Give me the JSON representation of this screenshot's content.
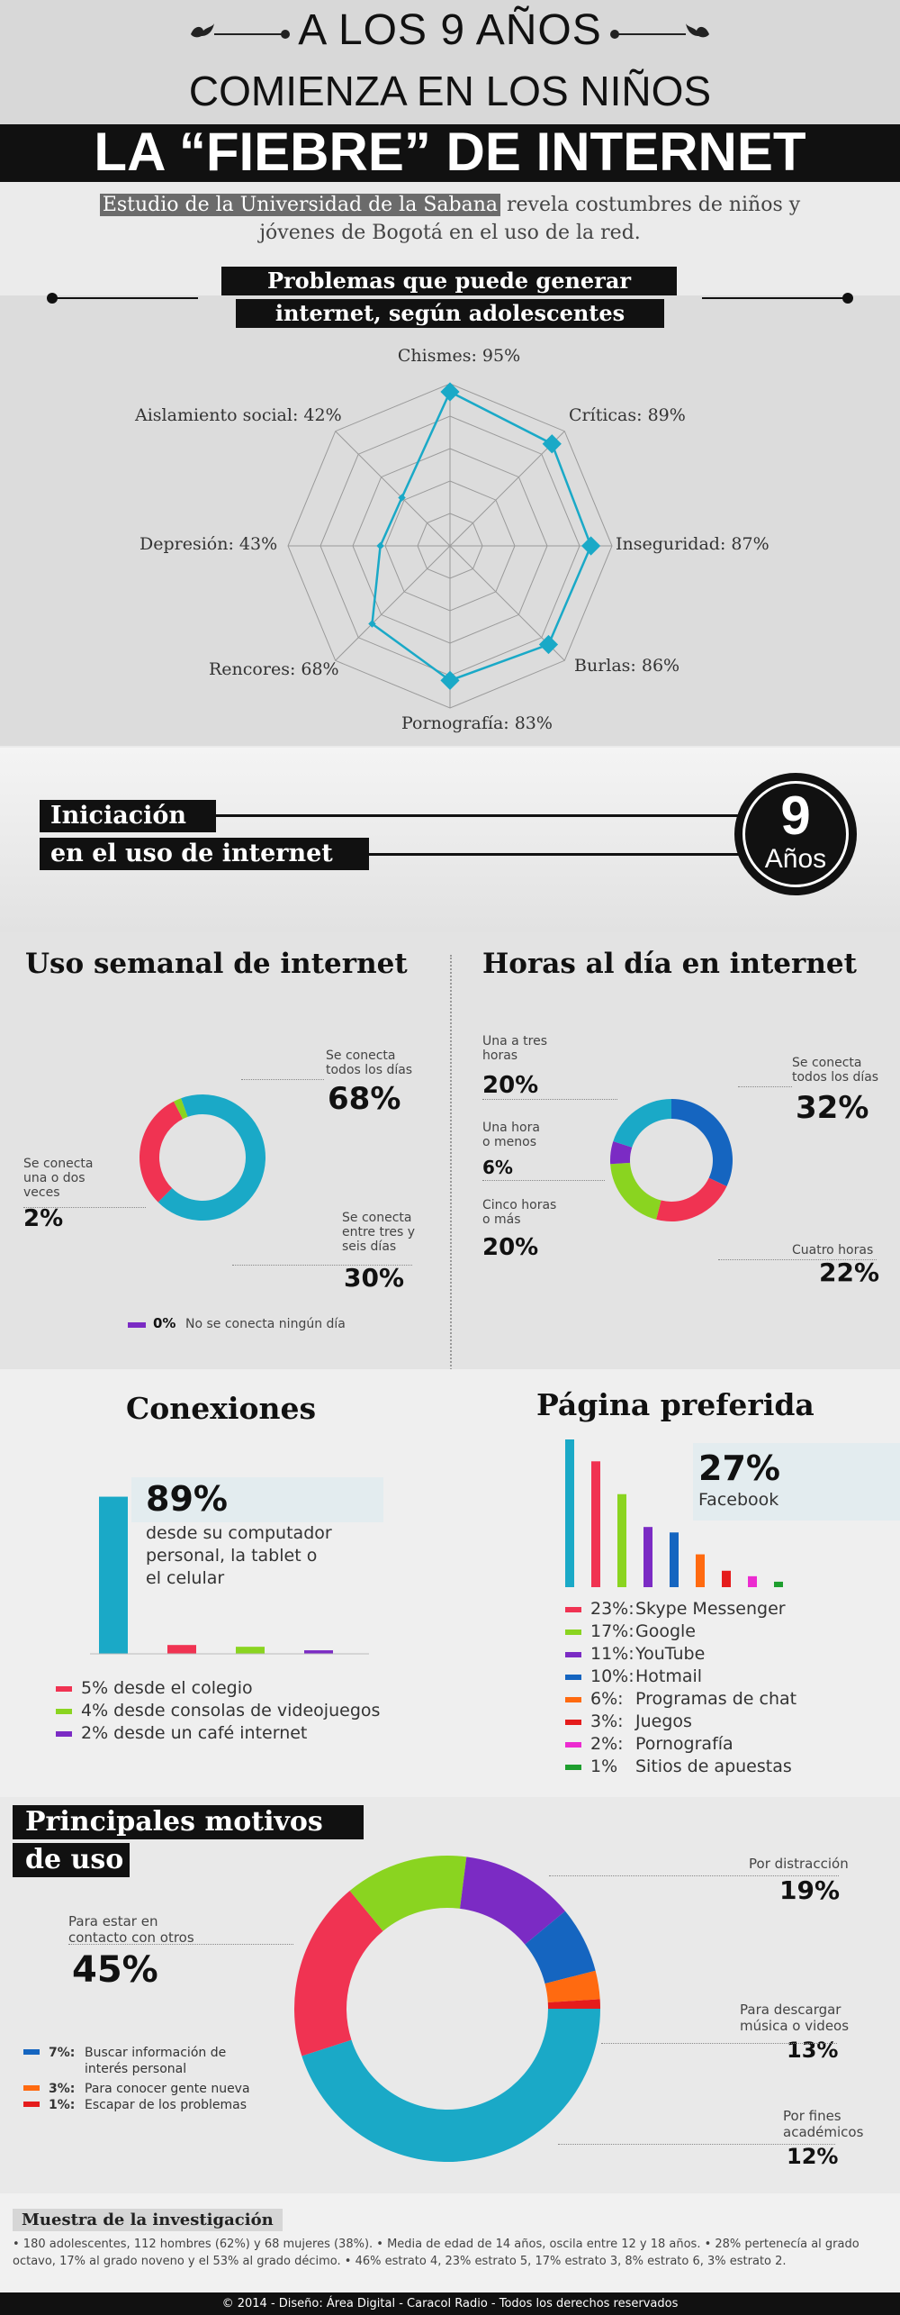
{
  "header": {
    "line1": "A LOS 9 AÑOS",
    "line2": "COMIENZA EN LOS NIÑOS",
    "line3": "LA “FIEBRE” DE INTERNET",
    "subtitle_highlight": "Estudio de la Universidad de la Sabana",
    "subtitle_rest": " revela costumbres de niños y",
    "subtitle_line2": "jóvenes de Bogotá en el uso de la red."
  },
  "problems": {
    "title_line1": "Problemas que  puede generar",
    "title_line2": "internet, según adolescentes",
    "labels": [
      "Chismes: 95%",
      "Críticas: 89%",
      "Inseguridad: 87%",
      "Burlas: 86%",
      "Pornografía: 83%",
      "Rencores: 68%",
      "Depresión: 43%",
      "Aislamiento social: 42%"
    ],
    "chart_data": {
      "type": "radar",
      "categories": [
        "Chismes",
        "Críticas",
        "Inseguridad",
        "Burlas",
        "Pornografía",
        "Rencores",
        "Depresión",
        "Aislamiento social"
      ],
      "values": [
        95,
        89,
        87,
        86,
        83,
        68,
        43,
        42
      ],
      "unit": "%",
      "color": "#1aa9c7"
    }
  },
  "initiation": {
    "line1": "Iniciación",
    "line2": "en el uso de internet",
    "number": "9",
    "unit": "Años"
  },
  "weekly": {
    "title": "Uso semanal de internet",
    "labels": {
      "daily_desc": "Se conecta\ntodos los días",
      "daily_val": "68%",
      "some_desc": "Se conecta\nuna o dos\nveces",
      "some_val": "2%",
      "three_desc": "Se conecta\nentre tres y\nseis días",
      "three_val": "30%",
      "none_val": "0%",
      "none_desc": "No se conecta ningún día"
    },
    "chart_data": {
      "type": "pie",
      "categories": [
        "Se conecta todos los días",
        "Se conecta entre tres y seis días",
        "Se conecta una o dos veces",
        "No se conecta ningún día"
      ],
      "values": [
        68,
        30,
        2,
        0
      ],
      "colors": [
        "#1aa9c7",
        "#f03352",
        "#8ad420",
        "#7b2bc4"
      ]
    }
  },
  "hours": {
    "title": "Horas al día en internet",
    "labels": {
      "one3_desc": "Una a tres\nhoras",
      "one3_val": "20%",
      "lt1_desc": "Una hora\no menos",
      "lt1_val": "6%",
      "five_desc": "Cinco horas\no más",
      "five_val": "20%",
      "daily_desc": "Se conecta\ntodos los días",
      "daily_val": "32%",
      "four_desc": "Cuatro horas",
      "four_val": "22%"
    },
    "chart_data": {
      "type": "pie",
      "categories": [
        "Se conecta todos los días",
        "Cuatro horas",
        "Cinco horas o más",
        "Una hora o menos",
        "Una a tres horas"
      ],
      "values": [
        32,
        22,
        20,
        6,
        20
      ],
      "colors": [
        "#1565c0",
        "#f03352",
        "#8ad420",
        "#7b2bc4",
        "#1aa9c7"
      ]
    }
  },
  "connections": {
    "title": "Conexiones",
    "main_val": "89%",
    "main_desc": "desde su computador\npersonal, la tablet o\nel celular",
    "legend": [
      "5% desde el colegio",
      "4% desde consolas de videojuegos",
      "2% desde un café internet"
    ],
    "chart_data": {
      "type": "bar",
      "categories": [
        "computador personal, tablet o celular",
        "colegio",
        "consolas de videojuegos",
        "café internet"
      ],
      "values": [
        89,
        5,
        4,
        2
      ],
      "colors": [
        "#1aa9c7",
        "#f03352",
        "#8ad420",
        "#7b2bc4"
      ],
      "ylim": [
        0,
        100
      ]
    }
  },
  "preferred": {
    "title": "Página preferida",
    "main_val": "27%",
    "main_desc": "Facebook",
    "legend": [
      {
        "pct": "23%:",
        "name": "Skype Messenger"
      },
      {
        "pct": "17%:",
        "name": "Google"
      },
      {
        "pct": "11%:",
        "name": "YouTube"
      },
      {
        "pct": "10%:",
        "name": "Hotmail"
      },
      {
        "pct": "6%:",
        "name": "Programas de chat"
      },
      {
        "pct": "3%:",
        "name": "Juegos"
      },
      {
        "pct": "2%:",
        "name": "Pornografía"
      },
      {
        "pct": "1%",
        "name": "Sitios de apuestas"
      }
    ],
    "chart_data": {
      "type": "bar",
      "categories": [
        "Facebook",
        "Skype Messenger",
        "Google",
        "YouTube",
        "Hotmail",
        "Programas de chat",
        "Juegos",
        "Pornografía",
        "Sitios de apuestas"
      ],
      "values": [
        27,
        23,
        17,
        11,
        10,
        6,
        3,
        2,
        1
      ],
      "colors": [
        "#1aa9c7",
        "#f03352",
        "#8ad420",
        "#7b2bc4",
        "#1565c0",
        "#ff6a10",
        "#e51c1c",
        "#ec2bd0",
        "#1e9e2e"
      ],
      "ylim": [
        0,
        27
      ]
    }
  },
  "motives": {
    "title_line1": "Principales motivos",
    "title_line2": "de uso",
    "labels": {
      "contact_desc": "Para estar en\ncontacto con otros",
      "contact_val": "45%",
      "distraction_desc": "Por distracción",
      "distraction_val": "19%",
      "download_desc": "Para descargar\nmúsica o videos",
      "download_val": "13%",
      "academic_desc": "Por fines\nacadémicos",
      "academic_val": "12%"
    },
    "legend": [
      {
        "pct": "7%:",
        "desc": "Buscar información de\ninterés personal"
      },
      {
        "pct": "3%:",
        "desc": "Para conocer gente nueva"
      },
      {
        "pct": "1%:",
        "desc": "Escapar de los problemas"
      }
    ],
    "chart_data": {
      "type": "pie",
      "categories": [
        "Para estar en contacto con otros",
        "Por distracción",
        "Para descargar música o videos",
        "Por fines académicos",
        "Buscar información de interés personal",
        "Para conocer gente nueva",
        "Escapar de los problemas"
      ],
      "values": [
        45,
        19,
        13,
        12,
        7,
        3,
        1
      ],
      "colors": [
        "#1aa9c7",
        "#f03352",
        "#8ad420",
        "#7b2bc4",
        "#1565c0",
        "#ff6a10",
        "#e51c1c"
      ]
    }
  },
  "sample": {
    "title": "Muestra de la investigación",
    "text_line1": "• 180 adolescentes, 112 hombres (62%) y 68 mujeres (38%).  •  Media de edad de 14 años, oscila entre 12 y  18 años.  •  28% pertenecía al grado",
    "text_line2": "octavo, 17% al grado noveno y el 53% al grado décimo.  •  46% estrato 4, 23% estrato 5, 17% estrato 3, 8% estrato 6, 3% estrato 2."
  },
  "footer": "© 2014 - Diseño: Área Digital - Caracol Radio - Todos los derechos reservados"
}
